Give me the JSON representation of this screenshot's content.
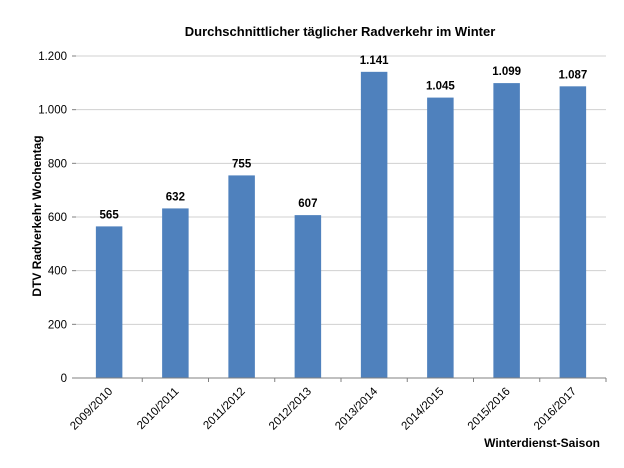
{
  "chart_data": {
    "type": "bar",
    "title": "Durchschnittlicher täglicher Radverkehr im Winter",
    "xlabel": "Winterdienst-Saison",
    "ylabel": "DTV Radverkehr Wochentag",
    "categories": [
      "2009/2010",
      "2010/2011",
      "2011/2012",
      "2012/2013",
      "2013/2014",
      "2014/2015",
      "2015/2016",
      "2016/2017"
    ],
    "values": [
      565,
      632,
      755,
      607,
      1141,
      1045,
      1099,
      1087
    ],
    "value_labels": [
      "565",
      "632",
      "755",
      "607",
      "1.141",
      "1.045",
      "1.099",
      "1.087"
    ],
    "ylim": [
      0,
      1200
    ],
    "yticks": [
      0,
      200,
      400,
      600,
      800,
      1000,
      1200
    ],
    "ytick_labels": [
      "0",
      "200",
      "400",
      "600",
      "800",
      "1.000",
      "1.200"
    ],
    "grid": true,
    "legend": "none",
    "bar_color": "#4F81BD"
  }
}
